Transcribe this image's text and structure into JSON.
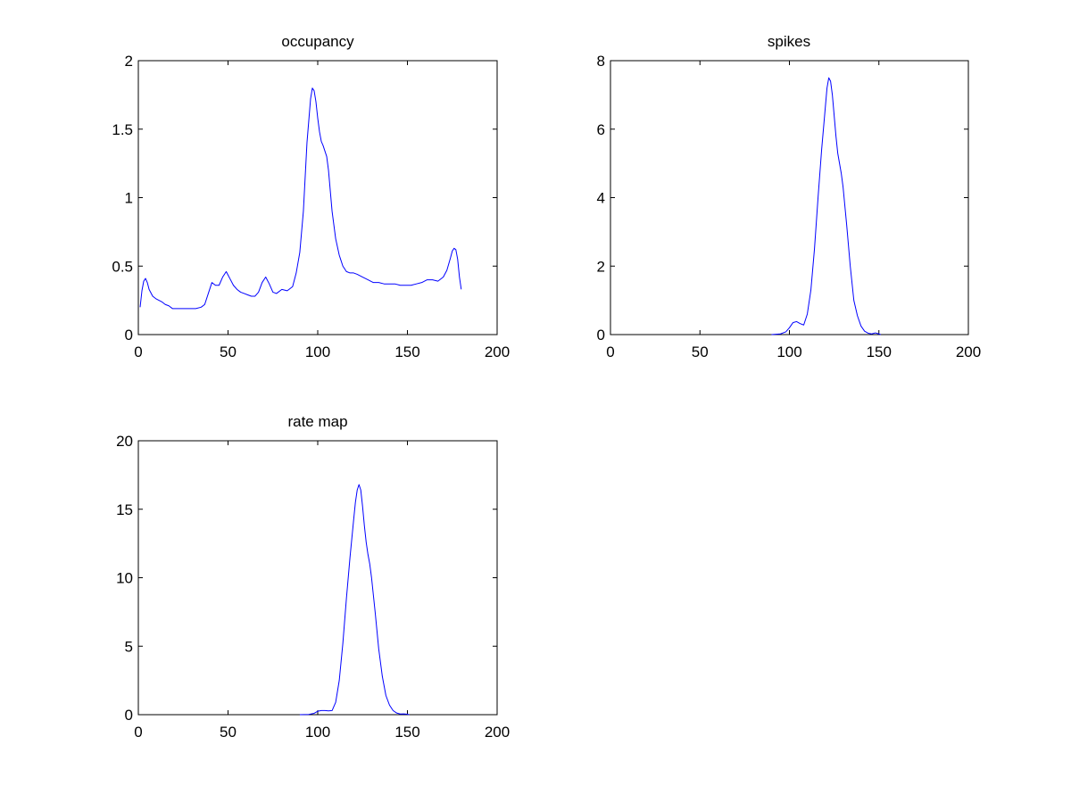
{
  "figure": {
    "background": "#ffffff",
    "line_color": "#0000ff",
    "axis_color": "#000000"
  },
  "chart_data": [
    {
      "type": "line",
      "title": "occupancy",
      "xlabel": "",
      "ylabel": "",
      "xlim": [
        0,
        200
      ],
      "ylim": [
        0,
        2
      ],
      "xticks": [
        0,
        50,
        100,
        150,
        200
      ],
      "yticks": [
        0,
        0.5,
        1,
        1.5,
        2
      ],
      "grid": false,
      "series": [
        {
          "x": [
            1,
            2,
            3,
            4,
            5,
            6,
            8,
            10,
            13,
            15,
            17,
            19,
            21,
            24,
            28,
            32,
            35,
            37,
            39,
            41,
            43,
            45,
            47,
            49,
            51,
            53,
            55,
            57,
            59,
            61,
            63,
            65,
            67,
            69,
            71,
            73,
            75,
            77,
            80,
            83,
            86,
            88,
            90,
            92,
            94,
            96,
            97,
            98,
            99,
            100,
            101,
            102,
            103,
            104,
            105,
            106,
            107,
            108,
            109,
            110,
            112,
            114,
            116,
            118,
            120,
            122,
            125,
            128,
            131,
            134,
            137,
            140,
            143,
            146,
            149,
            152,
            155,
            158,
            161,
            164,
            167,
            170,
            172,
            174,
            175,
            176,
            177,
            178,
            179,
            180
          ],
          "y": [
            0.2,
            0.32,
            0.39,
            0.41,
            0.38,
            0.33,
            0.28,
            0.26,
            0.24,
            0.22,
            0.21,
            0.19,
            0.19,
            0.19,
            0.19,
            0.19,
            0.2,
            0.22,
            0.3,
            0.38,
            0.36,
            0.36,
            0.42,
            0.46,
            0.41,
            0.36,
            0.33,
            0.31,
            0.3,
            0.29,
            0.28,
            0.28,
            0.31,
            0.38,
            0.42,
            0.37,
            0.31,
            0.3,
            0.33,
            0.32,
            0.35,
            0.45,
            0.6,
            0.9,
            1.4,
            1.72,
            1.8,
            1.78,
            1.7,
            1.58,
            1.48,
            1.41,
            1.38,
            1.34,
            1.3,
            1.2,
            1.05,
            0.9,
            0.8,
            0.7,
            0.58,
            0.5,
            0.46,
            0.45,
            0.45,
            0.44,
            0.42,
            0.4,
            0.38,
            0.38,
            0.37,
            0.37,
            0.37,
            0.36,
            0.36,
            0.36,
            0.37,
            0.38,
            0.4,
            0.4,
            0.39,
            0.42,
            0.47,
            0.56,
            0.61,
            0.63,
            0.62,
            0.55,
            0.42,
            0.33
          ]
        }
      ]
    },
    {
      "type": "line",
      "title": "spikes",
      "xlabel": "",
      "ylabel": "",
      "xlim": [
        0,
        200
      ],
      "ylim": [
        0,
        8
      ],
      "xticks": [
        0,
        50,
        100,
        150,
        200
      ],
      "yticks": [
        0,
        2,
        4,
        6,
        8
      ],
      "grid": false,
      "series": [
        {
          "x": [
            90,
            95,
            98,
            100,
            102,
            104,
            106,
            108,
            110,
            112,
            114,
            116,
            118,
            120,
            121,
            122,
            123,
            124,
            125,
            126,
            127,
            128,
            129,
            130,
            132,
            134,
            136,
            138,
            140,
            142,
            144,
            146,
            148,
            150,
            151
          ],
          "y": [
            0,
            0.02,
            0.08,
            0.2,
            0.35,
            0.38,
            0.32,
            0.28,
            0.6,
            1.3,
            2.5,
            4.0,
            5.4,
            6.6,
            7.2,
            7.5,
            7.4,
            7.0,
            6.4,
            5.8,
            5.3,
            5.0,
            4.7,
            4.3,
            3.2,
            2.0,
            1.0,
            0.55,
            0.25,
            0.1,
            0.04,
            0.02,
            0.05,
            0.02,
            0
          ]
        }
      ]
    },
    {
      "type": "line",
      "title": "rate map",
      "xlabel": "",
      "ylabel": "",
      "xlim": [
        0,
        200
      ],
      "ylim": [
        0,
        20
      ],
      "xticks": [
        0,
        50,
        100,
        150,
        200
      ],
      "yticks": [
        0,
        5,
        10,
        15,
        20
      ],
      "grid": false,
      "series": [
        {
          "x": [
            90,
            95,
            98,
            100,
            102,
            104,
            106,
            108,
            110,
            112,
            114,
            116,
            118,
            120,
            121,
            122,
            123,
            124,
            125,
            126,
            127,
            128,
            129,
            130,
            132,
            134,
            136,
            138,
            140,
            142,
            144,
            146,
            148,
            150,
            151
          ],
          "y": [
            0,
            0.02,
            0.1,
            0.25,
            0.3,
            0.3,
            0.28,
            0.3,
            0.9,
            2.5,
            5.2,
            8.5,
            11.5,
            14.2,
            15.5,
            16.4,
            16.8,
            16.4,
            15.2,
            13.8,
            12.6,
            11.7,
            11.0,
            10.0,
            7.5,
            4.8,
            2.8,
            1.4,
            0.7,
            0.3,
            0.12,
            0.05,
            0.06,
            0.03,
            0
          ]
        }
      ]
    }
  ]
}
